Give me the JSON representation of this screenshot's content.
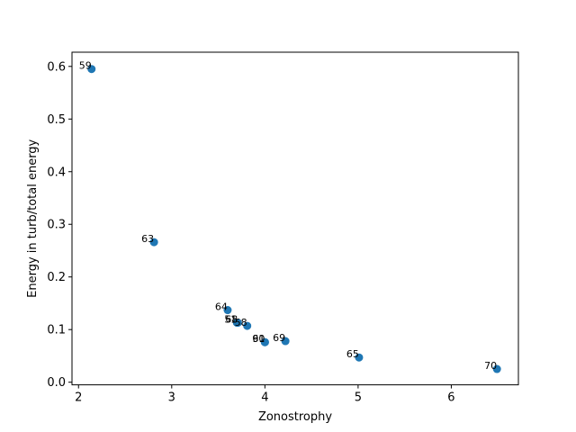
{
  "chart_data": {
    "type": "scatter",
    "title": "",
    "xlabel": "Zonostrophy",
    "ylabel": "Energy in turb/total energy",
    "xlim": [
      1.93,
      6.72
    ],
    "ylim": [
      -0.005,
      0.627
    ],
    "xticks": [
      2,
      3,
      4,
      5,
      6
    ],
    "yticks": [
      0.0,
      0.1,
      0.2,
      0.3,
      0.4,
      0.5,
      0.6
    ],
    "xtick_labels": [
      "2",
      "3",
      "4",
      "5",
      "6"
    ],
    "ytick_labels": [
      "0.0",
      "0.1",
      "0.2",
      "0.3",
      "0.4",
      "0.5",
      "0.6"
    ],
    "grid": false,
    "marker_color": "#1f77b4",
    "points": [
      {
        "label": "59",
        "x": 2.14,
        "y": 0.595
      },
      {
        "label": "63",
        "x": 2.81,
        "y": 0.266
      },
      {
        "label": "64",
        "x": 3.6,
        "y": 0.137
      },
      {
        "label": "51",
        "x": 3.7,
        "y": 0.113
      },
      {
        "label": "58",
        "x": 3.81,
        "y": 0.107
      },
      {
        "label": "68",
        "x": 3.71,
        "y": 0.113
      },
      {
        "label": "61",
        "x": 4.0,
        "y": 0.076
      },
      {
        "label": "90",
        "x": 4.0,
        "y": 0.076
      },
      {
        "label": "69",
        "x": 4.22,
        "y": 0.078
      },
      {
        "label": "65",
        "x": 5.01,
        "y": 0.047
      },
      {
        "label": "70",
        "x": 6.49,
        "y": 0.025
      }
    ]
  }
}
